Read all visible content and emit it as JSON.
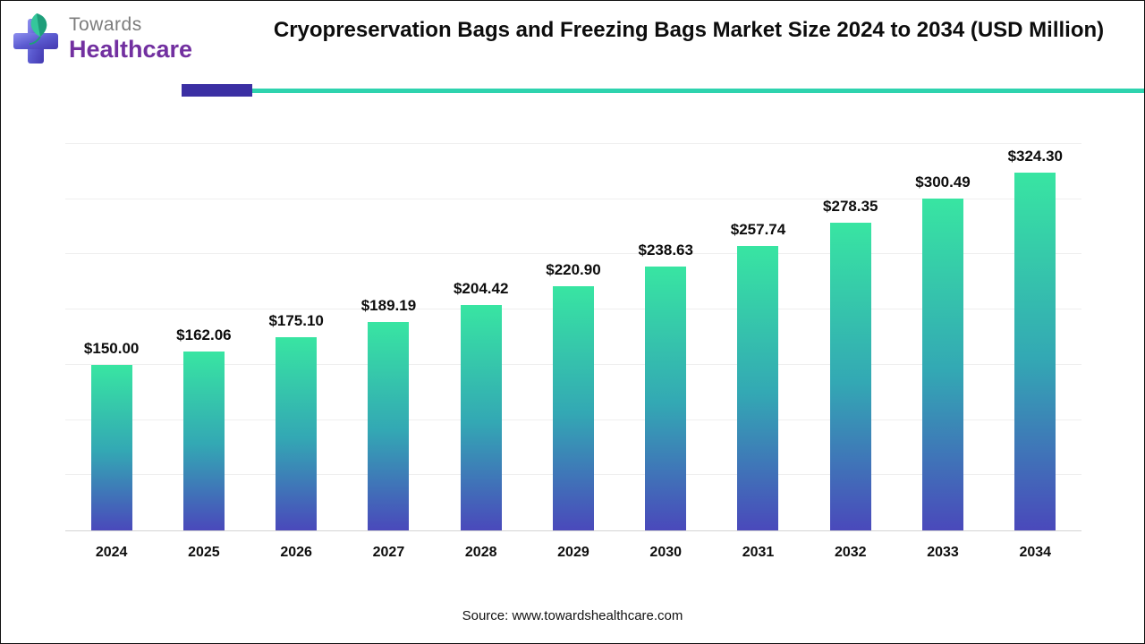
{
  "header": {
    "logo": {
      "line1": "Towards",
      "line2": "Healthcare",
      "icon": "cross-with-leaf-icon"
    },
    "title": "Cryopreservation Bags and Freezing Bags Market Size 2024 to 2034 (USD Million)"
  },
  "chart_data": {
    "type": "bar",
    "title": "Cryopreservation Bags and Freezing Bags Market Size 2024 to 2034 (USD Million)",
    "categories": [
      "2024",
      "2025",
      "2026",
      "2027",
      "2028",
      "2029",
      "2030",
      "2031",
      "2032",
      "2033",
      "2034"
    ],
    "values": [
      150.0,
      162.06,
      175.1,
      189.19,
      204.42,
      220.9,
      238.63,
      257.74,
      278.35,
      300.49,
      324.3
    ],
    "value_labels": [
      "$150.00",
      "$162.06",
      "$175.10",
      "$189.19",
      "$204.42",
      "$220.90",
      "$238.63",
      "$257.74",
      "$278.35",
      "$300.49",
      "$324.30"
    ],
    "xlabel": "",
    "ylabel": "",
    "ylim": [
      0,
      350
    ],
    "grid": true,
    "gridline_step": 50,
    "legend": "none"
  },
  "footer": {
    "source": "Source: www.towardshealthcare.com"
  },
  "colors": {
    "bar_top": "#38E5A2",
    "bar_mid": "#33A8B4",
    "bar_bottom": "#4A49BB",
    "divider_indigo": "#3B2FA3",
    "divider_teal": "#2ED3AE",
    "brand_purple": "#7230A0",
    "brand_gray": "#7C7C7C",
    "text": "#0D0D0D",
    "gridline": "#EFEFEF"
  }
}
